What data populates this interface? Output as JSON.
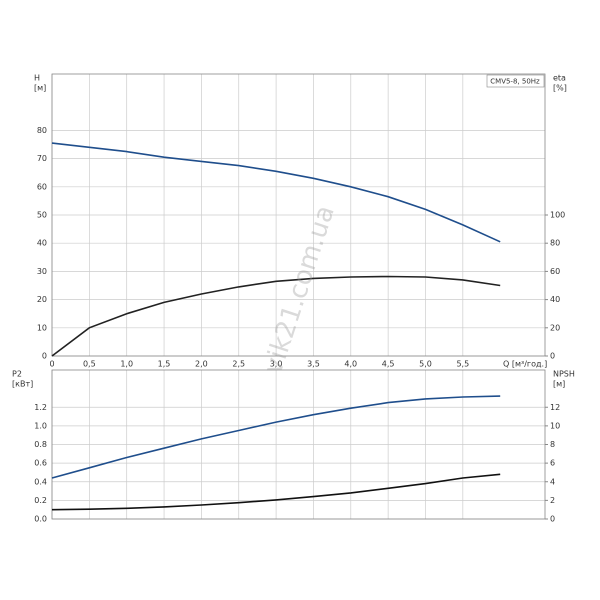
{
  "watermark": "vik21.com.ua",
  "chart_data": [
    {
      "type": "line",
      "title": "CMV5-8, 50Hz",
      "ylabel": "H",
      "yunit": "[м]",
      "y2label": "eta",
      "y2unit": "[%]",
      "xlabel": "Q [м³/год.]",
      "x": [
        0,
        0.5,
        1,
        1.5,
        2,
        2.5,
        3,
        3.5,
        4,
        4.5,
        5,
        5.5,
        6
      ],
      "xlim": [
        0,
        6.6
      ],
      "xticks": [
        0,
        {
          "value": 0.5,
          "label": "0,5"
        },
        {
          "value": 1,
          "label": "1,0"
        },
        {
          "value": 1.5,
          "label": "1,5"
        },
        {
          "value": 2,
          "label": "2,0"
        },
        {
          "value": 2.5,
          "label": "2,5"
        },
        {
          "value": 3,
          "label": "3,0"
        },
        {
          "value": 3.5,
          "label": "3,5"
        },
        {
          "value": 4,
          "label": "4,0"
        },
        {
          "value": 4.5,
          "label": "4,5"
        },
        {
          "value": 5,
          "label": "5,0"
        },
        {
          "value": 5.5,
          "label": "5,5"
        }
      ],
      "ylim": [
        0,
        100
      ],
      "yticks": [
        0,
        10,
        20,
        30,
        40,
        50,
        60,
        70,
        80
      ],
      "y2lim": [
        0,
        200
      ],
      "y2ticks": [
        0,
        20,
        40,
        60,
        80,
        100
      ],
      "grid": true,
      "series": [
        {
          "color": "#1f4e8c",
          "values": [
            75.5,
            74,
            72.5,
            70.5,
            69,
            67.5,
            65.5,
            63,
            60,
            56.5,
            52,
            46.5,
            40.5
          ]
        },
        {
          "color": "#222222",
          "axis": "y2",
          "values": [
            0,
            20,
            30,
            38,
            44,
            49,
            53,
            55,
            56,
            56.4,
            56,
            54,
            50
          ]
        }
      ]
    },
    {
      "type": "line",
      "ylabel": "P2",
      "yunit": "[кВт]",
      "y2label": "NPSH",
      "y2unit": "[м]",
      "x": [
        0,
        0.5,
        1,
        1.5,
        2,
        2.5,
        3,
        3.5,
        4,
        4.5,
        5,
        5.5,
        6
      ],
      "xlim": [
        0,
        6.6
      ],
      "ylim": [
        0,
        1.6
      ],
      "yticks": [
        {
          "value": 0,
          "label": "0.0"
        },
        0.2,
        0.4,
        0.6,
        0.8,
        {
          "value": 1,
          "label": "1.0"
        },
        1.2
      ],
      "y2lim": [
        0,
        16
      ],
      "y2ticks": [
        0,
        2,
        4,
        6,
        8,
        10,
        12
      ],
      "grid": true,
      "series": [
        {
          "color": "#1f4e8c",
          "values": [
            0.44,
            0.55,
            0.66,
            0.76,
            0.86,
            0.95,
            1.04,
            1.12,
            1.19,
            1.25,
            1.29,
            1.31,
            1.32
          ]
        },
        {
          "color": "#111111",
          "axis": "y2",
          "values": [
            1.0,
            1.05,
            1.15,
            1.3,
            1.5,
            1.75,
            2.05,
            2.4,
            2.8,
            3.3,
            3.8,
            4.4,
            4.8
          ]
        }
      ]
    }
  ]
}
